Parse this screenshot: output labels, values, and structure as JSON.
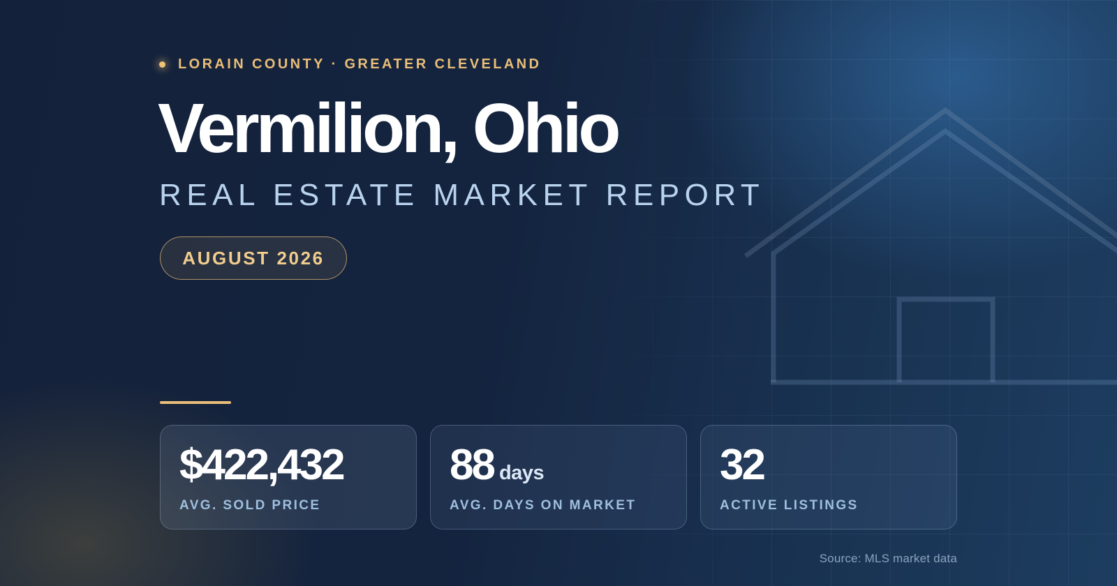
{
  "eyebrow": "LORAIN COUNTY · GREATER CLEVELAND",
  "title": "Vermilion, Ohio",
  "subtitle": "REAL ESTATE MARKET REPORT",
  "report_date": "AUGUST 2026",
  "stats": [
    {
      "value": "$422,432",
      "unit": "",
      "label": "AVG. SOLD PRICE"
    },
    {
      "value": "88",
      "unit": "days",
      "label": "AVG. DAYS ON MARKET"
    },
    {
      "value": "32",
      "unit": "",
      "label": "ACTIVE LISTINGS"
    }
  ],
  "source": "Source: MLS market data",
  "colors": {
    "background": "#14213a",
    "accent_gold": "#e9be78",
    "subtitle_blue": "#b9d3ee",
    "label_blue": "#9fbfdf"
  },
  "icons": [
    "house-outline-icon"
  ]
}
